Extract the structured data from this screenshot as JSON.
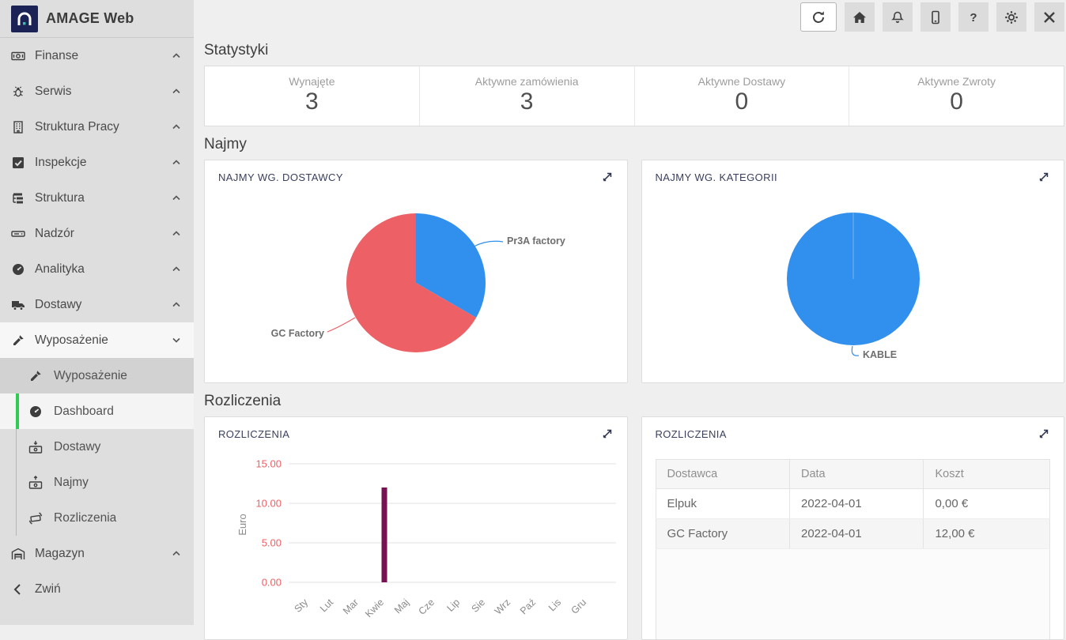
{
  "app": {
    "title": "AMAGE Web"
  },
  "header": {
    "icons": [
      "refresh-icon",
      "home-icon",
      "bell-icon",
      "mobile-icon",
      "help-icon",
      "gear-icon",
      "close-icon"
    ]
  },
  "sidebar": {
    "items": [
      {
        "label": "Finanse",
        "icon": "money-bill-icon",
        "chevron": "up"
      },
      {
        "label": "Serwis",
        "icon": "bug-icon",
        "chevron": "up"
      },
      {
        "label": "Struktura Pracy",
        "icon": "building-icon",
        "chevron": "up"
      },
      {
        "label": "Inspekcje",
        "icon": "check-square-icon",
        "chevron": "up"
      },
      {
        "label": "Struktura",
        "icon": "sitemap-icon",
        "chevron": "up"
      },
      {
        "label": "Nadzór",
        "icon": "panel-icon",
        "chevron": "up"
      },
      {
        "label": "Analityka",
        "icon": "gauge-icon",
        "chevron": "up"
      },
      {
        "label": "Dostawy",
        "icon": "truck-icon",
        "chevron": "up"
      },
      {
        "label": "Wyposażenie",
        "icon": "screwdriver-icon",
        "chevron": "down",
        "expanded": true
      }
    ],
    "submenu": [
      {
        "label": "Wyposażenie",
        "icon": "screwdriver-icon"
      },
      {
        "label": "Dashboard",
        "icon": "gauge-icon",
        "active": true
      },
      {
        "label": "Dostawy",
        "icon": "money-arrow-down-icon"
      },
      {
        "label": "Najmy",
        "icon": "money-arrow-up-icon"
      },
      {
        "label": "Rozliczenia",
        "icon": "money-exchange-icon"
      }
    ],
    "magazyn": {
      "label": "Magazyn",
      "icon": "warehouse-icon",
      "chevron": "up"
    },
    "collapse": {
      "label": "Zwiń",
      "icon": "chevron-left-icon"
    }
  },
  "sections": {
    "statistics": {
      "title": "Statystyki",
      "cards": [
        {
          "label": "Wynajęte",
          "value": "3"
        },
        {
          "label": "Aktywne zamówienia",
          "value": "3"
        },
        {
          "label": "Aktywne Dostawy",
          "value": "0"
        },
        {
          "label": "Aktywne Zwroty",
          "value": "0"
        }
      ]
    },
    "najmy": {
      "title": "Najmy"
    },
    "rozliczenia": {
      "title": "Rozliczenia"
    }
  },
  "chart_data": [
    {
      "type": "pie",
      "title": "NAJMY WG. DOSTAWCY",
      "labels": [
        "Pr3A factory",
        "GC Factory"
      ],
      "values": [
        1,
        2
      ],
      "colors": [
        "#318fed",
        "#ed6166"
      ],
      "legend_position": "callout-labels"
    },
    {
      "type": "pie",
      "title": "NAJMY WG. KATEGORII",
      "labels": [
        "KABLE"
      ],
      "values": [
        3
      ],
      "colors": [
        "#318fed"
      ],
      "legend_position": "callout-labels"
    },
    {
      "type": "bar",
      "title": "ROZLICZENIA",
      "xlabel": "",
      "ylabel": "Euro",
      "categories": [
        "Sty",
        "Lut",
        "Mar",
        "Kwie",
        "Maj",
        "Cze",
        "Lip",
        "Sie",
        "Wrz",
        "Paź",
        "Lis",
        "Gru"
      ],
      "values": [
        0,
        0,
        0,
        12,
        0,
        0,
        0,
        0,
        0,
        0,
        0,
        0
      ],
      "yticks": [
        "0.00",
        "5.00",
        "10.00",
        "15.00"
      ],
      "ylim": [
        0,
        15
      ],
      "grid": true,
      "bar_color": "#771353",
      "tick_color": "#ef6167"
    },
    {
      "type": "table",
      "title": "ROZLICZENIA",
      "headers": [
        "Dostawca",
        "Data",
        "Koszt"
      ],
      "rows": [
        [
          "Elpuk",
          "2022-04-01",
          "0,00 €"
        ],
        [
          "GC Factory",
          "2022-04-01",
          "12,00 €"
        ]
      ]
    }
  ],
  "colors": {
    "sidebar_bg": "#dedede",
    "active_green": "#2fcb52",
    "logo_navy": "#1b2256",
    "logo_teal": "#2ec4a5",
    "card_title": "#3a3f5c",
    "pie_blue": "#318fed",
    "pie_red": "#ed6166",
    "bar_maroon": "#771353",
    "tick_red": "#ef6167"
  }
}
